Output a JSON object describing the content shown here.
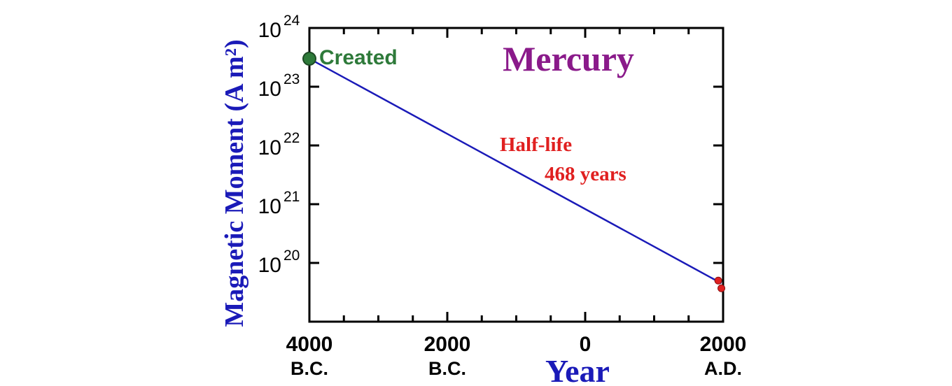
{
  "chart_data": {
    "type": "line",
    "title": "Mercury",
    "xlabel": "Year",
    "ylabel": "Magnetic Moment (A m²)",
    "yscale": "log",
    "xlim": [
      -4000,
      2000
    ],
    "ylim": [
      1e+19,
      1e+24
    ],
    "x_ticks": [
      {
        "value": -4000,
        "label": "4000",
        "era": "B.C."
      },
      {
        "value": -2000,
        "label": "2000",
        "era": "B.C."
      },
      {
        "value": 0,
        "label": "0",
        "era": ""
      },
      {
        "value": 2000,
        "label": "2000",
        "era": "A.D."
      }
    ],
    "y_ticks": [
      {
        "value": 1e+20,
        "base": "10",
        "exp": "20"
      },
      {
        "value": 1e+21,
        "base": "10",
        "exp": "21"
      },
      {
        "value": 1e+22,
        "base": "10",
        "exp": "22"
      },
      {
        "value": 1e+23,
        "base": "10",
        "exp": "23"
      },
      {
        "value": 1e+24,
        "base": "10",
        "exp": "24"
      }
    ],
    "series": [
      {
        "color": "#1a1ab8",
        "x": [
          -4000,
          1975
        ],
        "y": [
          3e+23,
          4.5e+19
        ]
      }
    ],
    "created_point": {
      "x": -4000,
      "y": 3e+23,
      "label": "Created",
      "color": "#2e7a3a"
    },
    "measurements": [
      {
        "x": 1930,
        "y": 5e+19
      },
      {
        "x": 1975,
        "y": 3.7e+19
      }
    ],
    "measurement_color": "#e02020",
    "annotations": [
      {
        "text": "Half-life",
        "color": "#e02020"
      },
      {
        "text": "468 years",
        "color": "#e02020"
      }
    ],
    "title_color": "#8a1a8a",
    "axis_label_color": "#1a1ab8",
    "grid": false
  }
}
